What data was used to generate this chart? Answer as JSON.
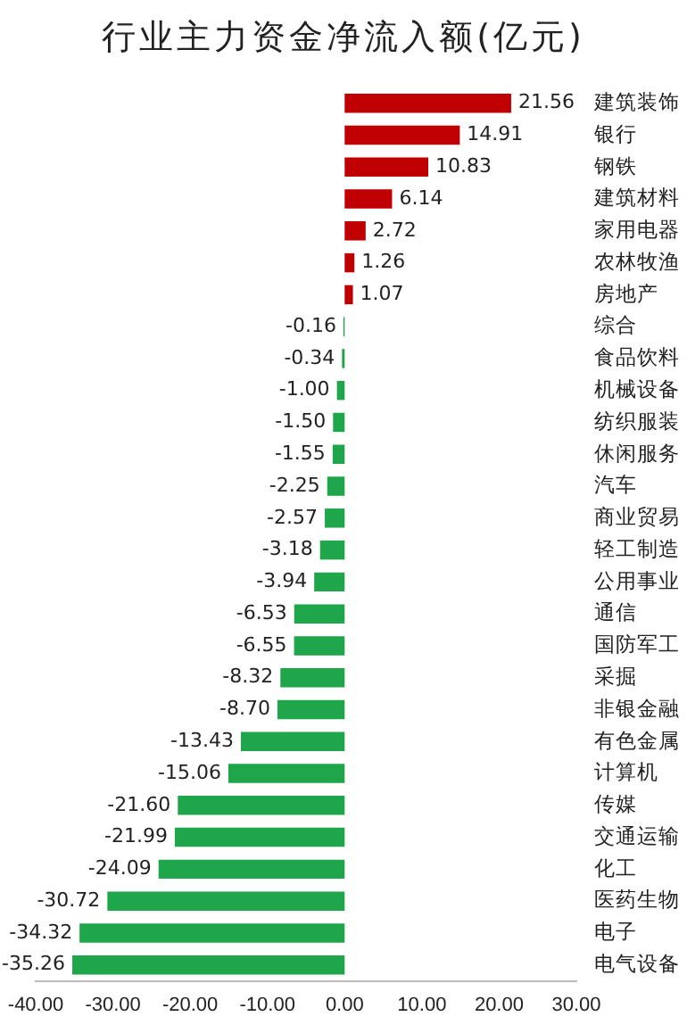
{
  "chart_data": {
    "type": "bar",
    "orientation": "horizontal",
    "title": "行业主力资金净流入额(亿元)",
    "categories": [
      "建筑装饰",
      "银行",
      "钢铁",
      "建筑材料",
      "家用电器",
      "农林牧渔",
      "房地产",
      "综合",
      "食品饮料",
      "机械设备",
      "纺织服装",
      "休闲服务",
      "汽车",
      "商业贸易",
      "轻工制造",
      "公用事业",
      "通信",
      "国防军工",
      "采掘",
      "非银金融",
      "有色金属",
      "计算机",
      "传媒",
      "交通运输",
      "化工",
      "医药生物",
      "电子",
      "电气设备"
    ],
    "values": [
      21.56,
      14.91,
      10.83,
      6.14,
      2.72,
      1.26,
      1.07,
      -0.16,
      -0.34,
      -1.0,
      -1.5,
      -1.55,
      -2.25,
      -2.57,
      -3.18,
      -3.94,
      -6.53,
      -6.55,
      -8.32,
      -8.7,
      -13.43,
      -15.06,
      -21.6,
      -21.99,
      -24.09,
      -30.72,
      -34.32,
      -35.26
    ],
    "value_labels": [
      "21.56",
      "14.91",
      "10.83",
      "6.14",
      "2.72",
      "1.26",
      "1.07",
      "-0.16",
      "-0.34",
      "-1.00",
      "-1.50",
      "-1.55",
      "-2.25",
      "-2.57",
      "-3.18",
      "-3.94",
      "-6.53",
      "-6.55",
      "-8.32",
      "-8.70",
      "-13.43",
      "-15.06",
      "-21.60",
      "-21.99",
      "-24.09",
      "-30.72",
      "-34.32",
      "-35.26"
    ],
    "colors": [
      "#c00000",
      "#c00000",
      "#c00000",
      "#c00000",
      "#c00000",
      "#c00000",
      "#c00000",
      "#1fa64a",
      "#1fa64a",
      "#1fa64a",
      "#1fa64a",
      "#1fa64a",
      "#1fa64a",
      "#1fa64a",
      "#1fa64a",
      "#1fa64a",
      "#1fa64a",
      "#1fa64a",
      "#1fa64a",
      "#1fa64a",
      "#1fa64a",
      "#1fa64a",
      "#1fa64a",
      "#1fa64a",
      "#1fa64a",
      "#1fa64a",
      "#1fa64a",
      "#1fa64a"
    ],
    "xlim": [
      -40,
      30
    ],
    "xticks": [
      {
        "value": -40,
        "label": "-40.00"
      },
      {
        "value": -30,
        "label": "-30.00"
      },
      {
        "value": -20,
        "label": "-20.00"
      },
      {
        "value": -10,
        "label": "-10.00"
      },
      {
        "value": 0,
        "label": "0.00"
      },
      {
        "value": 10,
        "label": "10.00"
      },
      {
        "value": 20,
        "label": "20.00"
      },
      {
        "value": 30,
        "label": "30.00"
      }
    ],
    "grid": false,
    "legend": false
  }
}
